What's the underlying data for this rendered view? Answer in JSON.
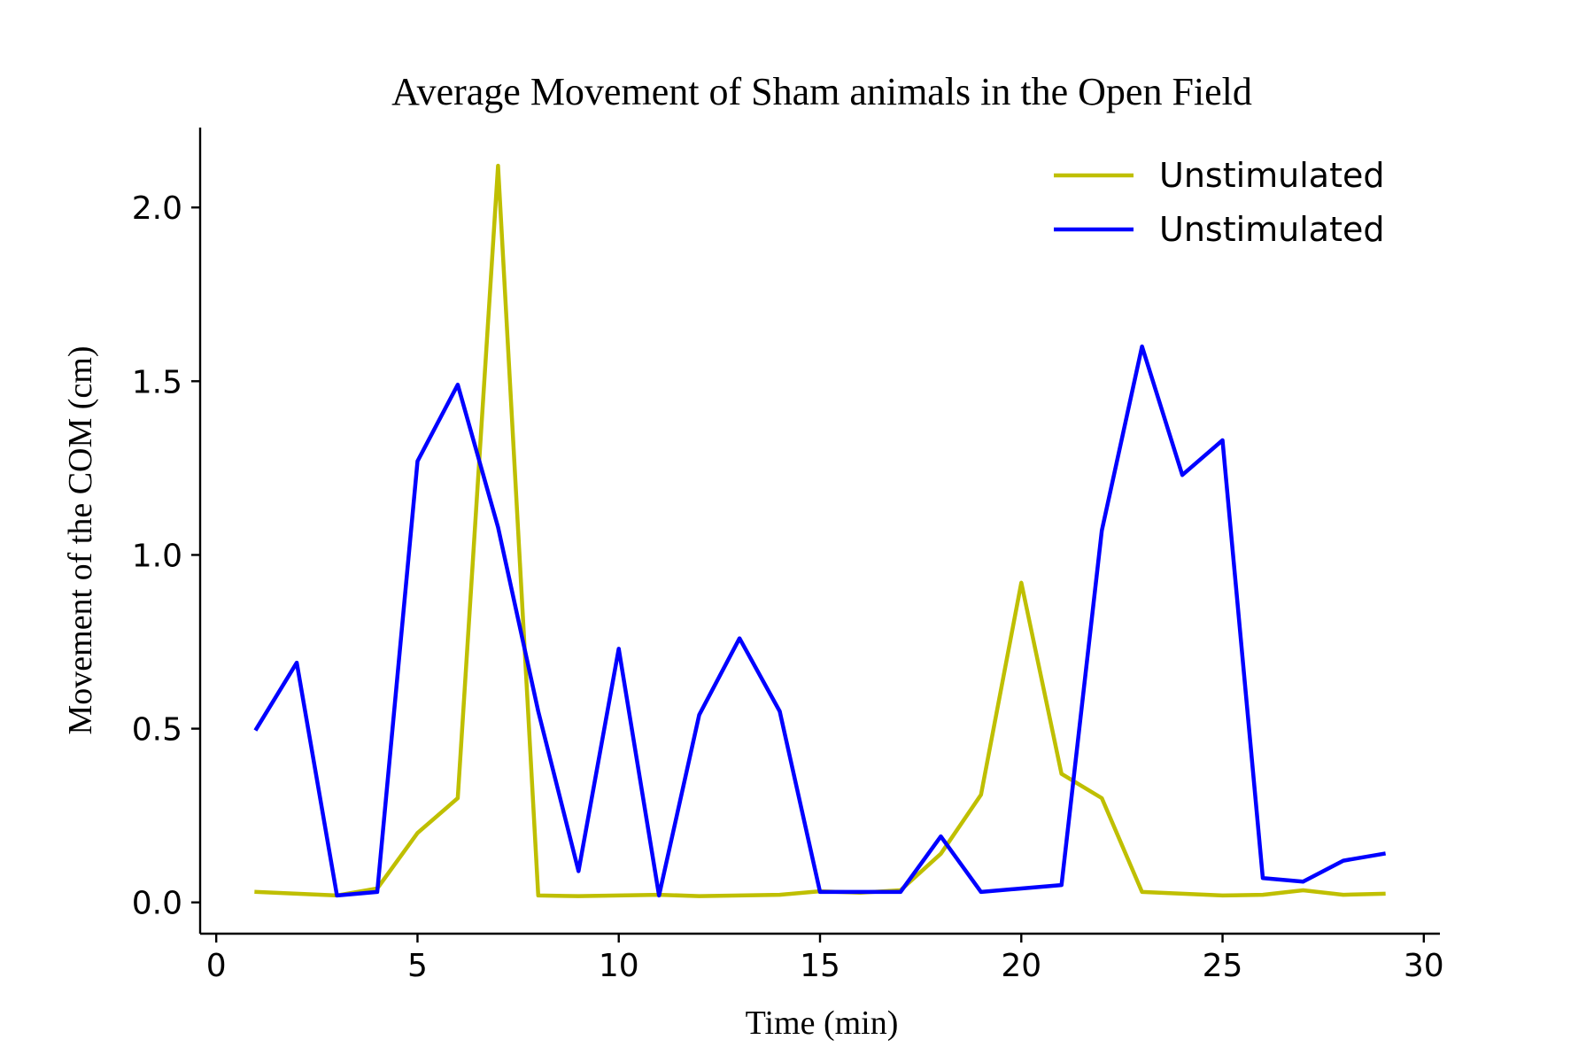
{
  "chart_data": {
    "type": "line",
    "title": "Average Movement of Sham animals in the Open Field",
    "xlabel": "Time (min)",
    "ylabel": "Movement of the COM (cm)",
    "xlim": [
      -0.4,
      30.4
    ],
    "ylim": [
      -0.09,
      2.23
    ],
    "xticks": [
      0,
      5,
      10,
      15,
      20,
      25,
      30
    ],
    "xtick_labels": [
      "0",
      "5",
      "10",
      "15",
      "20",
      "25",
      "30"
    ],
    "yticks": [
      0.0,
      0.5,
      1.0,
      1.5,
      2.0
    ],
    "ytick_labels": [
      "0.0",
      "0.5",
      "1.0",
      "1.5",
      "2.0"
    ],
    "grid": false,
    "legend_position": "top-right",
    "x": [
      1,
      2,
      3,
      4,
      5,
      6,
      7,
      8,
      9,
      10,
      11,
      12,
      13,
      14,
      15,
      16,
      17,
      18,
      19,
      20,
      21,
      22,
      23,
      24,
      25,
      26,
      27,
      28,
      29
    ],
    "series": [
      {
        "name": "Unstimulated",
        "color": "#bfbf00",
        "values": [
          0.03,
          0.025,
          0.02,
          0.04,
          0.2,
          0.3,
          2.12,
          0.02,
          0.018,
          0.02,
          0.022,
          0.018,
          0.02,
          0.022,
          0.032,
          0.028,
          0.035,
          0.14,
          0.31,
          0.92,
          0.37,
          0.3,
          0.03,
          0.025,
          0.02,
          0.022,
          0.035,
          0.022,
          0.025
        ]
      },
      {
        "name": "Unstimulated",
        "color": "#0000ff",
        "values": [
          0.5,
          0.69,
          0.02,
          0.03,
          1.27,
          1.49,
          1.08,
          0.55,
          0.09,
          0.73,
          0.02,
          0.54,
          0.76,
          0.55,
          0.03,
          0.03,
          0.03,
          0.19,
          0.03,
          0.04,
          0.05,
          1.07,
          1.6,
          1.23,
          1.33,
          0.07,
          0.06,
          0.12,
          0.14
        ]
      }
    ]
  }
}
